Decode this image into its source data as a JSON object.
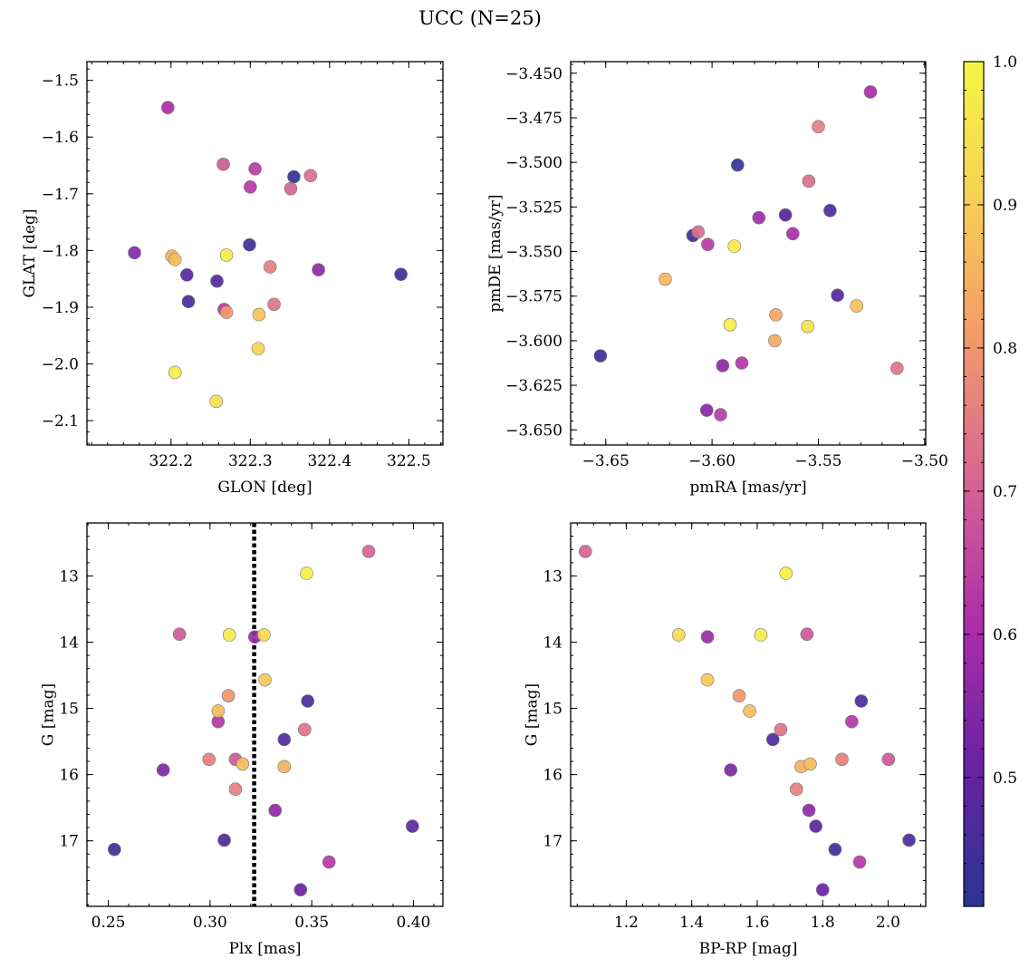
{
  "chart_data": {
    "type": "scatter",
    "title": "UCC (N=25)",
    "colorbar": {
      "range": [
        0.41,
        1.0
      ],
      "ticks": [
        0.5,
        0.6,
        0.7,
        0.8,
        0.9,
        1.0
      ],
      "tick_labels": [
        "0.5",
        "0.6",
        "0.7",
        "0.8",
        "0.9",
        "1.0"
      ],
      "colormap": "plasma",
      "colors": [
        "#2a3592",
        "#6a22a3",
        "#b02ea9",
        "#d76792",
        "#f39c68",
        "#f7d354",
        "#f5f545"
      ]
    },
    "panels": [
      {
        "id": "glon-glat",
        "xlabel": "GLON [deg]",
        "ylabel": "GLAT [deg]",
        "xlim": [
          322.094,
          322.543
        ],
        "ylim": [
          -2.143,
          -1.467
        ],
        "y_inverted": false,
        "xticks": [
          322.2,
          322.3,
          322.4,
          322.5
        ],
        "xtick_labels": [
          "322.2",
          "322.3",
          "322.4",
          "322.5"
        ],
        "yticks": [
          -2.1,
          -2.0,
          -1.9,
          -1.8,
          -1.7,
          -1.6,
          -1.5
        ],
        "ytick_labels": [
          "−2.1",
          "−2.0",
          "−1.9",
          "−1.8",
          "−1.7",
          "−1.6",
          "−1.5"
        ],
        "guide_x": null,
        "points": [
          {
            "x": 322.196,
            "y": -1.548,
            "c": 0.6
          },
          {
            "x": 322.266,
            "y": -1.648,
            "c": 0.68
          },
          {
            "x": 322.306,
            "y": -1.656,
            "c": 0.63
          },
          {
            "x": 322.355,
            "y": -1.67,
            "c": 0.42
          },
          {
            "x": 322.376,
            "y": -1.668,
            "c": 0.72
          },
          {
            "x": 322.351,
            "y": -1.691,
            "c": 0.7
          },
          {
            "x": 322.3,
            "y": -1.688,
            "c": 0.62
          },
          {
            "x": 322.154,
            "y": -1.804,
            "c": 0.55
          },
          {
            "x": 322.201,
            "y": -1.81,
            "c": 0.84
          },
          {
            "x": 322.205,
            "y": -1.816,
            "c": 0.86
          },
          {
            "x": 322.27,
            "y": -1.808,
            "c": 0.97
          },
          {
            "x": 322.299,
            "y": -1.79,
            "c": 0.44
          },
          {
            "x": 322.325,
            "y": -1.829,
            "c": 0.75
          },
          {
            "x": 322.386,
            "y": -1.834,
            "c": 0.56
          },
          {
            "x": 322.49,
            "y": -1.842,
            "c": 0.44
          },
          {
            "x": 322.22,
            "y": -1.843,
            "c": 0.48
          },
          {
            "x": 322.258,
            "y": -1.854,
            "c": 0.47
          },
          {
            "x": 322.222,
            "y": -1.89,
            "c": 0.46
          },
          {
            "x": 322.267,
            "y": -1.904,
            "c": 0.63
          },
          {
            "x": 322.27,
            "y": -1.909,
            "c": 0.8
          },
          {
            "x": 322.311,
            "y": -1.913,
            "c": 0.87
          },
          {
            "x": 322.33,
            "y": -1.895,
            "c": 0.73
          },
          {
            "x": 322.31,
            "y": -1.973,
            "c": 0.9
          },
          {
            "x": 322.205,
            "y": -2.015,
            "c": 0.98
          },
          {
            "x": 322.257,
            "y": -2.066,
            "c": 0.94
          }
        ]
      },
      {
        "id": "pmra-pmde",
        "xlabel": "pmRA [mas/yr]",
        "ylabel": "pmDE [mas/yr]",
        "xlim": [
          -3.6665,
          -3.4995
        ],
        "ylim": [
          -3.6585,
          -3.4435
        ],
        "y_inverted": false,
        "xticks": [
          -3.65,
          -3.6,
          -3.55,
          -3.5
        ],
        "xtick_labels": [
          "−3.65",
          "−3.60",
          "−3.55",
          "−3.50"
        ],
        "yticks": [
          -3.65,
          -3.625,
          -3.6,
          -3.575,
          -3.55,
          -3.525,
          -3.5,
          -3.475,
          -3.45
        ],
        "ytick_labels": [
          "−3.650",
          "−3.625",
          "−3.600",
          "−3.575",
          "−3.550",
          "−3.525",
          "−3.500",
          "−3.475",
          "−3.450"
        ],
        "guide_x": null,
        "points": [
          {
            "x": -3.5255,
            "y": -3.4605,
            "c": 0.6
          },
          {
            "x": -3.55,
            "y": -3.48,
            "c": 0.75
          },
          {
            "x": -3.588,
            "y": -3.5015,
            "c": 0.42
          },
          {
            "x": -3.5545,
            "y": -3.5105,
            "c": 0.72
          },
          {
            "x": -3.578,
            "y": -3.531,
            "c": 0.58
          },
          {
            "x": -3.5655,
            "y": -3.5295,
            "c": 0.47
          },
          {
            "x": -3.5445,
            "y": -3.527,
            "c": 0.46
          },
          {
            "x": -3.609,
            "y": -3.541,
            "c": 0.44
          },
          {
            "x": -3.6065,
            "y": -3.539,
            "c": 0.72
          },
          {
            "x": -3.602,
            "y": -3.546,
            "c": 0.63
          },
          {
            "x": -3.562,
            "y": -3.54,
            "c": 0.6
          },
          {
            "x": -3.5895,
            "y": -3.547,
            "c": 0.97
          },
          {
            "x": -3.622,
            "y": -3.5655,
            "c": 0.85
          },
          {
            "x": -3.541,
            "y": -3.5745,
            "c": 0.47
          },
          {
            "x": -3.532,
            "y": -3.5805,
            "c": 0.87
          },
          {
            "x": -3.57,
            "y": -3.5855,
            "c": 0.82
          },
          {
            "x": -3.5915,
            "y": -3.591,
            "c": 0.98
          },
          {
            "x": -3.555,
            "y": -3.592,
            "c": 0.94
          },
          {
            "x": -3.5705,
            "y": -3.6,
            "c": 0.83
          },
          {
            "x": -3.6525,
            "y": -3.6085,
            "c": 0.44
          },
          {
            "x": -3.595,
            "y": -3.614,
            "c": 0.56
          },
          {
            "x": -3.586,
            "y": -3.6125,
            "c": 0.62
          },
          {
            "x": -3.513,
            "y": -3.6155,
            "c": 0.73
          },
          {
            "x": -3.6025,
            "y": -3.639,
            "c": 0.55
          },
          {
            "x": -3.596,
            "y": -3.6415,
            "c": 0.63
          }
        ]
      },
      {
        "id": "plx-g",
        "xlabel": "Plx [mas]",
        "ylabel": "G [mag]",
        "xlim": [
          0.2395,
          0.4145
        ],
        "ylim": [
          12.2,
          17.99
        ],
        "y_inverted": true,
        "xticks": [
          0.25,
          0.3,
          0.35,
          0.4
        ],
        "xtick_labels": [
          "0.25",
          "0.30",
          "0.35",
          "0.40"
        ],
        "yticks": [
          13,
          14,
          15,
          16,
          17
        ],
        "ytick_labels": [
          "13",
          "14",
          "15",
          "16",
          "17"
        ],
        "guide_x": 0.3217,
        "points": [
          {
            "x": 0.378,
            "y": 12.63,
            "c": 0.7
          },
          {
            "x": 0.3475,
            "y": 12.96,
            "c": 0.98
          },
          {
            "x": 0.285,
            "y": 13.88,
            "c": 0.68
          },
          {
            "x": 0.3095,
            "y": 13.89,
            "c": 0.97
          },
          {
            "x": 0.3265,
            "y": 13.89,
            "c": 0.92
          },
          {
            "x": 0.322,
            "y": 13.92,
            "c": 0.58
          },
          {
            "x": 0.327,
            "y": 14.57,
            "c": 0.88
          },
          {
            "x": 0.309,
            "y": 14.81,
            "c": 0.79
          },
          {
            "x": 0.348,
            "y": 14.89,
            "c": 0.46
          },
          {
            "x": 0.304,
            "y": 15.04,
            "c": 0.86
          },
          {
            "x": 0.304,
            "y": 15.2,
            "c": 0.62
          },
          {
            "x": 0.3465,
            "y": 15.32,
            "c": 0.73
          },
          {
            "x": 0.3365,
            "y": 15.47,
            "c": 0.47
          },
          {
            "x": 0.2995,
            "y": 15.77,
            "c": 0.75
          },
          {
            "x": 0.3125,
            "y": 15.77,
            "c": 0.68
          },
          {
            "x": 0.316,
            "y": 15.84,
            "c": 0.86
          },
          {
            "x": 0.3365,
            "y": 15.88,
            "c": 0.84
          },
          {
            "x": 0.277,
            "y": 15.93,
            "c": 0.54
          },
          {
            "x": 0.3125,
            "y": 16.22,
            "c": 0.75
          },
          {
            "x": 0.332,
            "y": 16.54,
            "c": 0.56
          },
          {
            "x": 0.3995,
            "y": 16.78,
            "c": 0.48
          },
          {
            "x": 0.307,
            "y": 16.99,
            "c": 0.46
          },
          {
            "x": 0.253,
            "y": 17.13,
            "c": 0.44
          },
          {
            "x": 0.3585,
            "y": 17.32,
            "c": 0.62
          },
          {
            "x": 0.3445,
            "y": 17.74,
            "c": 0.51
          }
        ]
      },
      {
        "id": "bprp-g",
        "xlabel": "BP-RP [mag]",
        "ylabel": "G [mag]",
        "xlim": [
          1.03,
          2.115
        ],
        "ylim": [
          12.2,
          17.99
        ],
        "y_inverted": true,
        "xticks": [
          1.2,
          1.4,
          1.6,
          1.8,
          2.0
        ],
        "xtick_labels": [
          "1.2",
          "1.4",
          "1.6",
          "1.8",
          "2.0"
        ],
        "yticks": [
          13,
          14,
          15,
          16,
          17
        ],
        "ytick_labels": [
          "13",
          "14",
          "15",
          "16",
          "17"
        ],
        "guide_x": null,
        "points": [
          {
            "x": 1.075,
            "y": 12.63,
            "c": 0.7
          },
          {
            "x": 1.688,
            "y": 12.96,
            "c": 0.98
          },
          {
            "x": 1.36,
            "y": 13.89,
            "c": 0.92
          },
          {
            "x": 1.448,
            "y": 13.92,
            "c": 0.58
          },
          {
            "x": 1.611,
            "y": 13.89,
            "c": 0.97
          },
          {
            "x": 1.752,
            "y": 13.88,
            "c": 0.68
          },
          {
            "x": 1.448,
            "y": 14.57,
            "c": 0.88
          },
          {
            "x": 1.545,
            "y": 14.81,
            "c": 0.79
          },
          {
            "x": 1.918,
            "y": 14.89,
            "c": 0.46
          },
          {
            "x": 1.577,
            "y": 15.04,
            "c": 0.86
          },
          {
            "x": 1.889,
            "y": 15.2,
            "c": 0.62
          },
          {
            "x": 1.672,
            "y": 15.32,
            "c": 0.73
          },
          {
            "x": 1.648,
            "y": 15.47,
            "c": 0.47
          },
          {
            "x": 1.859,
            "y": 15.77,
            "c": 0.75
          },
          {
            "x": 2.001,
            "y": 15.77,
            "c": 0.68
          },
          {
            "x": 1.762,
            "y": 15.84,
            "c": 0.86
          },
          {
            "x": 1.734,
            "y": 15.88,
            "c": 0.84
          },
          {
            "x": 1.519,
            "y": 15.93,
            "c": 0.54
          },
          {
            "x": 1.72,
            "y": 16.22,
            "c": 0.75
          },
          {
            "x": 1.758,
            "y": 16.54,
            "c": 0.56
          },
          {
            "x": 1.779,
            "y": 16.78,
            "c": 0.48
          },
          {
            "x": 2.064,
            "y": 16.99,
            "c": 0.46
          },
          {
            "x": 1.838,
            "y": 17.13,
            "c": 0.44
          },
          {
            "x": 1.913,
            "y": 17.32,
            "c": 0.62
          },
          {
            "x": 1.8,
            "y": 17.74,
            "c": 0.51
          }
        ]
      }
    ]
  }
}
